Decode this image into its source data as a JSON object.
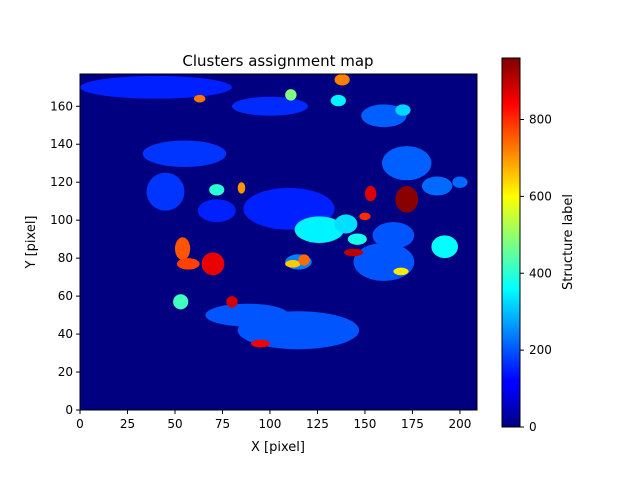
{
  "chart_data": {
    "type": "heatmap",
    "title": "Clusters assignment map",
    "xlabel": "X [pixel]",
    "ylabel": "Y [pixel]",
    "xlim": [
      0,
      209
    ],
    "ylim": [
      0,
      177
    ],
    "xticks": [
      0,
      25,
      50,
      75,
      100,
      125,
      150,
      175,
      200
    ],
    "yticks": [
      0,
      20,
      40,
      60,
      80,
      100,
      120,
      140,
      160
    ],
    "colorbar": {
      "label": "Structure label",
      "colormap": "jet",
      "range": [
        0,
        960
      ],
      "ticks": [
        0,
        200,
        400,
        600,
        800
      ]
    },
    "background_label": 0,
    "grid": false,
    "regions": [
      {
        "label": 150,
        "cx": 110,
        "cy": 106,
        "rx": 24,
        "ry": 11
      },
      {
        "label": 150,
        "cx": 72,
        "cy": 105,
        "rx": 10,
        "ry": 6
      },
      {
        "label": 150,
        "cx": 40,
        "cy": 170,
        "rx": 40,
        "ry": 6
      },
      {
        "label": 170,
        "cx": 55,
        "cy": 135,
        "rx": 22,
        "ry": 7
      },
      {
        "label": 170,
        "cx": 45,
        "cy": 115,
        "rx": 10,
        "ry": 10
      },
      {
        "label": 160,
        "cx": 100,
        "cy": 160,
        "rx": 20,
        "ry": 5
      },
      {
        "label": 200,
        "cx": 115,
        "cy": 42,
        "rx": 32,
        "ry": 10
      },
      {
        "label": 200,
        "cx": 88,
        "cy": 50,
        "rx": 22,
        "ry": 6
      },
      {
        "label": 200,
        "cx": 160,
        "cy": 78,
        "rx": 16,
        "ry": 10
      },
      {
        "label": 200,
        "cx": 165,
        "cy": 92,
        "rx": 11,
        "ry": 7
      },
      {
        "label": 210,
        "cx": 172,
        "cy": 130,
        "rx": 13,
        "ry": 9
      },
      {
        "label": 220,
        "cx": 188,
        "cy": 118,
        "rx": 8,
        "ry": 5
      },
      {
        "label": 210,
        "cx": 160,
        "cy": 155,
        "rx": 12,
        "ry": 6
      },
      {
        "label": 220,
        "cx": 200,
        "cy": 120,
        "rx": 4,
        "ry": 3
      },
      {
        "label": 240,
        "cx": 115,
        "cy": 78,
        "rx": 7,
        "ry": 4
      },
      {
        "label": 350,
        "cx": 126,
        "cy": 95,
        "rx": 13,
        "ry": 7
      },
      {
        "label": 330,
        "cx": 140,
        "cy": 98,
        "rx": 6,
        "ry": 5
      },
      {
        "label": 360,
        "cx": 192,
        "cy": 86,
        "rx": 7,
        "ry": 6
      },
      {
        "label": 420,
        "cx": 53,
        "cy": 57,
        "rx": 4,
        "ry": 4
      },
      {
        "label": 400,
        "cx": 72,
        "cy": 116,
        "rx": 4,
        "ry": 3
      },
      {
        "label": 350,
        "cx": 136,
        "cy": 163,
        "rx": 4,
        "ry": 3
      },
      {
        "label": 320,
        "cx": 170,
        "cy": 158,
        "rx": 4,
        "ry": 3
      },
      {
        "label": 380,
        "cx": 146,
        "cy": 90,
        "rx": 5,
        "ry": 3
      },
      {
        "label": 480,
        "cx": 111,
        "cy": 166,
        "rx": 3,
        "ry": 3
      },
      {
        "label": 620,
        "cx": 169,
        "cy": 73,
        "rx": 4,
        "ry": 2
      },
      {
        "label": 650,
        "cx": 112,
        "cy": 77,
        "rx": 4,
        "ry": 2
      },
      {
        "label": 720,
        "cx": 138,
        "cy": 174,
        "rx": 4,
        "ry": 3
      },
      {
        "label": 730,
        "cx": 63,
        "cy": 164,
        "rx": 3,
        "ry": 2
      },
      {
        "label": 700,
        "cx": 85,
        "cy": 117,
        "rx": 2,
        "ry": 3
      },
      {
        "label": 740,
        "cx": 118,
        "cy": 79,
        "rx": 3,
        "ry": 3
      },
      {
        "label": 760,
        "cx": 54,
        "cy": 85,
        "rx": 4,
        "ry": 6
      },
      {
        "label": 780,
        "cx": 57,
        "cy": 77,
        "rx": 6,
        "ry": 3
      },
      {
        "label": 800,
        "cx": 150,
        "cy": 102,
        "rx": 3,
        "ry": 2
      },
      {
        "label": 860,
        "cx": 70,
        "cy": 77,
        "rx": 6,
        "ry": 6
      },
      {
        "label": 880,
        "cx": 80,
        "cy": 57,
        "rx": 3,
        "ry": 3
      },
      {
        "label": 850,
        "cx": 95,
        "cy": 35,
        "rx": 5,
        "ry": 2
      },
      {
        "label": 870,
        "cx": 153,
        "cy": 114,
        "rx": 3,
        "ry": 4
      },
      {
        "label": 900,
        "cx": 144,
        "cy": 83,
        "rx": 5,
        "ry": 2
      },
      {
        "label": 950,
        "cx": 172,
        "cy": 111,
        "rx": 6,
        "ry": 7
      }
    ]
  }
}
